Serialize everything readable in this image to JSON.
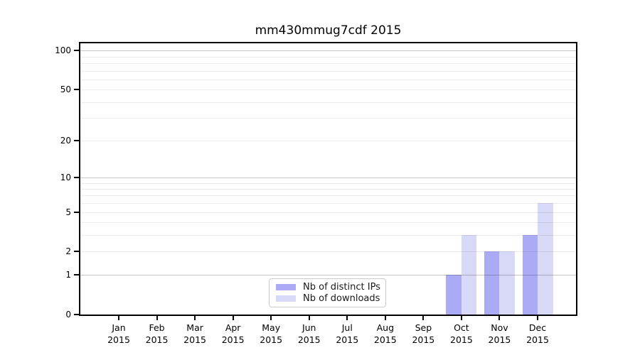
{
  "title": "mm430mmug7cdf 2015",
  "chart_data": {
    "type": "bar",
    "title": "mm430mmug7cdf 2015",
    "categories": [
      "Jan",
      "Feb",
      "Mar",
      "Apr",
      "May",
      "Jun",
      "Jul",
      "Aug",
      "Sep",
      "Oct",
      "Nov",
      "Dec"
    ],
    "year_label": "2015",
    "series": [
      {
        "name": "Nb of distinct IPs",
        "color": "#aaaaf5",
        "values": [
          0,
          0,
          0,
          0,
          0,
          0,
          0,
          0,
          0,
          1,
          2,
          3
        ]
      },
      {
        "name": "Nb of downloads",
        "color": "#d8d8f7",
        "values": [
          0,
          0,
          0,
          0,
          0,
          0,
          0,
          0,
          0,
          3,
          2,
          6
        ]
      }
    ],
    "xlabel": "",
    "ylabel": "",
    "yscale": "log10(1+y)",
    "ylim": [
      0,
      113
    ],
    "yticks": [
      0,
      1,
      2,
      5,
      10,
      20,
      50,
      100
    ],
    "gridlines": {
      "major": [
        1,
        10,
        100
      ],
      "minor": [
        2,
        3,
        4,
        5,
        6,
        7,
        8,
        9,
        20,
        30,
        40,
        50,
        60,
        70,
        80,
        90
      ]
    },
    "grid": true,
    "legend_position": "lower center"
  }
}
